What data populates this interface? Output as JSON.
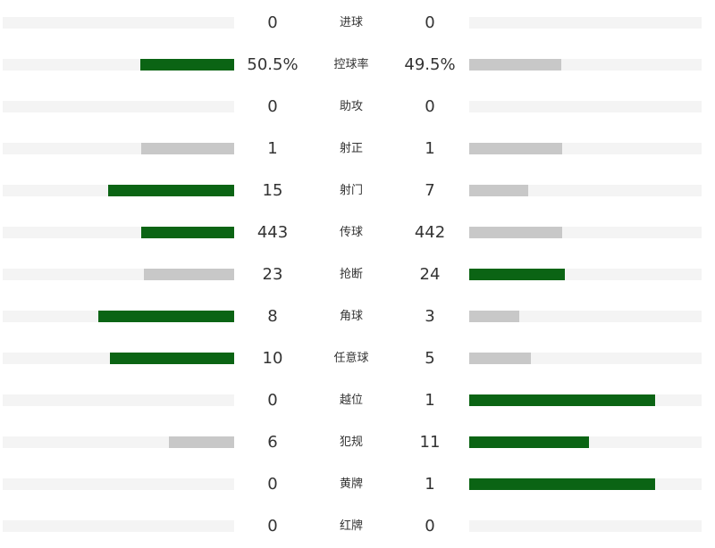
{
  "colors": {
    "leading": "#0b6414",
    "trailing": "#c8c8c8",
    "track": "#f4f4f4"
  },
  "stats": [
    {
      "label": "进球",
      "home": "0",
      "away": "0",
      "home_fraction": 0.0,
      "away_fraction": 0.0,
      "leader": "none"
    },
    {
      "label": "控球率",
      "home": "50.5%",
      "away": "49.5%",
      "home_fraction": 0.405,
      "away_fraction": 0.395,
      "leader": "home"
    },
    {
      "label": "助攻",
      "home": "0",
      "away": "0",
      "home_fraction": 0.0,
      "away_fraction": 0.0,
      "leader": "none"
    },
    {
      "label": "射正",
      "home": "1",
      "away": "1",
      "home_fraction": 0.4,
      "away_fraction": 0.4,
      "leader": "none"
    },
    {
      "label": "射门",
      "home": "15",
      "away": "7",
      "home_fraction": 0.545,
      "away_fraction": 0.255,
      "leader": "home"
    },
    {
      "label": "传球",
      "home": "443",
      "away": "442",
      "home_fraction": 0.4,
      "away_fraction": 0.4,
      "leader": "home"
    },
    {
      "label": "抢断",
      "home": "23",
      "away": "24",
      "home_fraction": 0.39,
      "away_fraction": 0.41,
      "leader": "away"
    },
    {
      "label": "角球",
      "home": "8",
      "away": "3",
      "home_fraction": 0.585,
      "away_fraction": 0.215,
      "leader": "home"
    },
    {
      "label": "任意球",
      "home": "10",
      "away": "5",
      "home_fraction": 0.535,
      "away_fraction": 0.265,
      "leader": "home"
    },
    {
      "label": "越位",
      "home": "0",
      "away": "1",
      "home_fraction": 0.0,
      "away_fraction": 0.8,
      "leader": "away"
    },
    {
      "label": "犯规",
      "home": "6",
      "away": "11",
      "home_fraction": 0.28,
      "away_fraction": 0.515,
      "leader": "away"
    },
    {
      "label": "黄牌",
      "home": "0",
      "away": "1",
      "home_fraction": 0.0,
      "away_fraction": 0.8,
      "leader": "away"
    },
    {
      "label": "红牌",
      "home": "0",
      "away": "0",
      "home_fraction": 0.0,
      "away_fraction": 0.0,
      "leader": "none"
    }
  ]
}
